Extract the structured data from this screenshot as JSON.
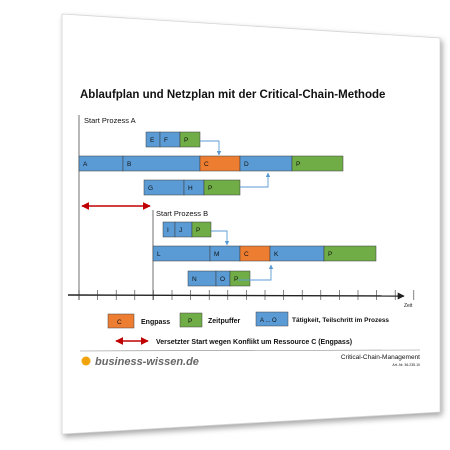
{
  "title": "Ablaufplan und Netzplan mit der Critical-Chain-Methode",
  "process_a": {
    "label": "Start Prozess A",
    "rows": [
      {
        "row": 1,
        "tasks": [
          {
            "label": "E",
            "type": "task"
          },
          {
            "label": "F",
            "type": "task"
          },
          {
            "label": "P",
            "type": "buffer"
          }
        ]
      },
      {
        "row": 2,
        "tasks": [
          {
            "label": "A",
            "type": "task"
          },
          {
            "label": "B",
            "type": "task"
          },
          {
            "label": "C",
            "type": "bottleneck"
          },
          {
            "label": "D",
            "type": "task"
          },
          {
            "label": "P",
            "type": "buffer"
          }
        ]
      },
      {
        "row": 3,
        "tasks": [
          {
            "label": "G",
            "type": "task"
          },
          {
            "label": "H",
            "type": "task"
          },
          {
            "label": "P",
            "type": "buffer"
          }
        ]
      }
    ]
  },
  "process_b": {
    "label": "Start Prozess B",
    "rows": [
      {
        "row": 1,
        "tasks": [
          {
            "label": "I",
            "type": "task"
          },
          {
            "label": "J",
            "type": "task"
          },
          {
            "label": "P",
            "type": "buffer"
          }
        ]
      },
      {
        "row": 2,
        "tasks": [
          {
            "label": "L",
            "type": "task"
          },
          {
            "label": "M",
            "type": "task"
          },
          {
            "label": "C",
            "type": "bottleneck"
          },
          {
            "label": "K",
            "type": "task"
          },
          {
            "label": "P",
            "type": "buffer"
          }
        ]
      },
      {
        "row": 3,
        "tasks": [
          {
            "label": "N",
            "type": "task"
          },
          {
            "label": "O",
            "type": "task"
          },
          {
            "label": "P",
            "type": "buffer"
          }
        ]
      }
    ]
  },
  "axis_label": "Zeit",
  "legend": {
    "bottleneck_symbol": "C",
    "bottleneck_label": "Engpass",
    "buffer_symbol": "P",
    "buffer_label": "Zeitpuffer",
    "task_symbol": "A ... O",
    "task_label": "Tätigkeit, Teilschritt im Prozess",
    "offset_label": "Versetzter Start wegen Konflikt um Ressource C (Engpass)"
  },
  "footer": {
    "brand": "business-wissen.de",
    "right_title": "Critical-Chain-Management",
    "article_no": "Art.-Nr. 36.235.10"
  },
  "colors": {
    "task": "#5b9bd5",
    "bottleneck": "#ed7d31",
    "buffer": "#70ad47",
    "arrow_connector": "#5b9bd5",
    "offset_arrow": "#c00000",
    "brand_dot": "#f0a30a"
  }
}
